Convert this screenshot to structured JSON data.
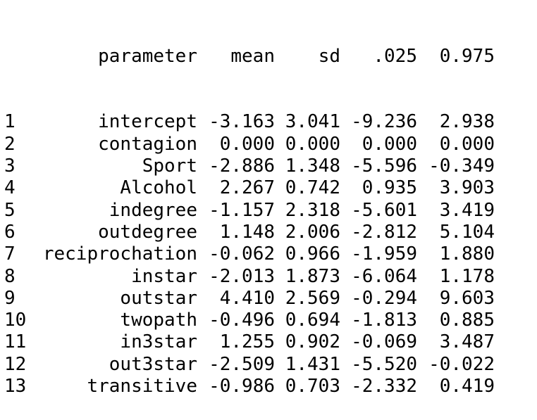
{
  "table": {
    "headers": {
      "index": "",
      "parameter": "parameter",
      "mean": "mean",
      "sd": "sd",
      "lower": ".025",
      "upper": "0.975"
    },
    "rows": [
      {
        "index": "1",
        "parameter": "intercept",
        "mean": "-3.163",
        "sd": "3.041",
        "lower": "-9.236",
        "upper": "2.938"
      },
      {
        "index": "2",
        "parameter": "contagion",
        "mean": "0.000",
        "sd": "0.000",
        "lower": "0.000",
        "upper": "0.000"
      },
      {
        "index": "3",
        "parameter": "Sport",
        "mean": "-2.886",
        "sd": "1.348",
        "lower": "-5.596",
        "upper": "-0.349"
      },
      {
        "index": "4",
        "parameter": "Alcohol",
        "mean": "2.267",
        "sd": "0.742",
        "lower": "0.935",
        "upper": "3.903"
      },
      {
        "index": "5",
        "parameter": "indegree",
        "mean": "-1.157",
        "sd": "2.318",
        "lower": "-5.601",
        "upper": "3.419"
      },
      {
        "index": "6",
        "parameter": "outdegree",
        "mean": "1.148",
        "sd": "2.006",
        "lower": "-2.812",
        "upper": "5.104"
      },
      {
        "index": "7",
        "parameter": "reciprochation",
        "mean": "-0.062",
        "sd": "0.966",
        "lower": "-1.959",
        "upper": "1.880"
      },
      {
        "index": "8",
        "parameter": "instar",
        "mean": "-2.013",
        "sd": "1.873",
        "lower": "-6.064",
        "upper": "1.178"
      },
      {
        "index": "9",
        "parameter": "outstar",
        "mean": "4.410",
        "sd": "2.569",
        "lower": "-0.294",
        "upper": "9.603"
      },
      {
        "index": "10",
        "parameter": "twopath",
        "mean": "-0.496",
        "sd": "0.694",
        "lower": "-1.813",
        "upper": "0.885"
      },
      {
        "index": "11",
        "parameter": "in3star",
        "mean": "1.255",
        "sd": "0.902",
        "lower": "-0.069",
        "upper": "3.487"
      },
      {
        "index": "12",
        "parameter": "out3star",
        "mean": "-2.509",
        "sd": "1.431",
        "lower": "-5.520",
        "upper": "-0.022"
      },
      {
        "index": "13",
        "parameter": "transitive",
        "mean": "-0.986",
        "sd": "0.703",
        "lower": "-2.332",
        "upper": "0.419"
      }
    ]
  }
}
